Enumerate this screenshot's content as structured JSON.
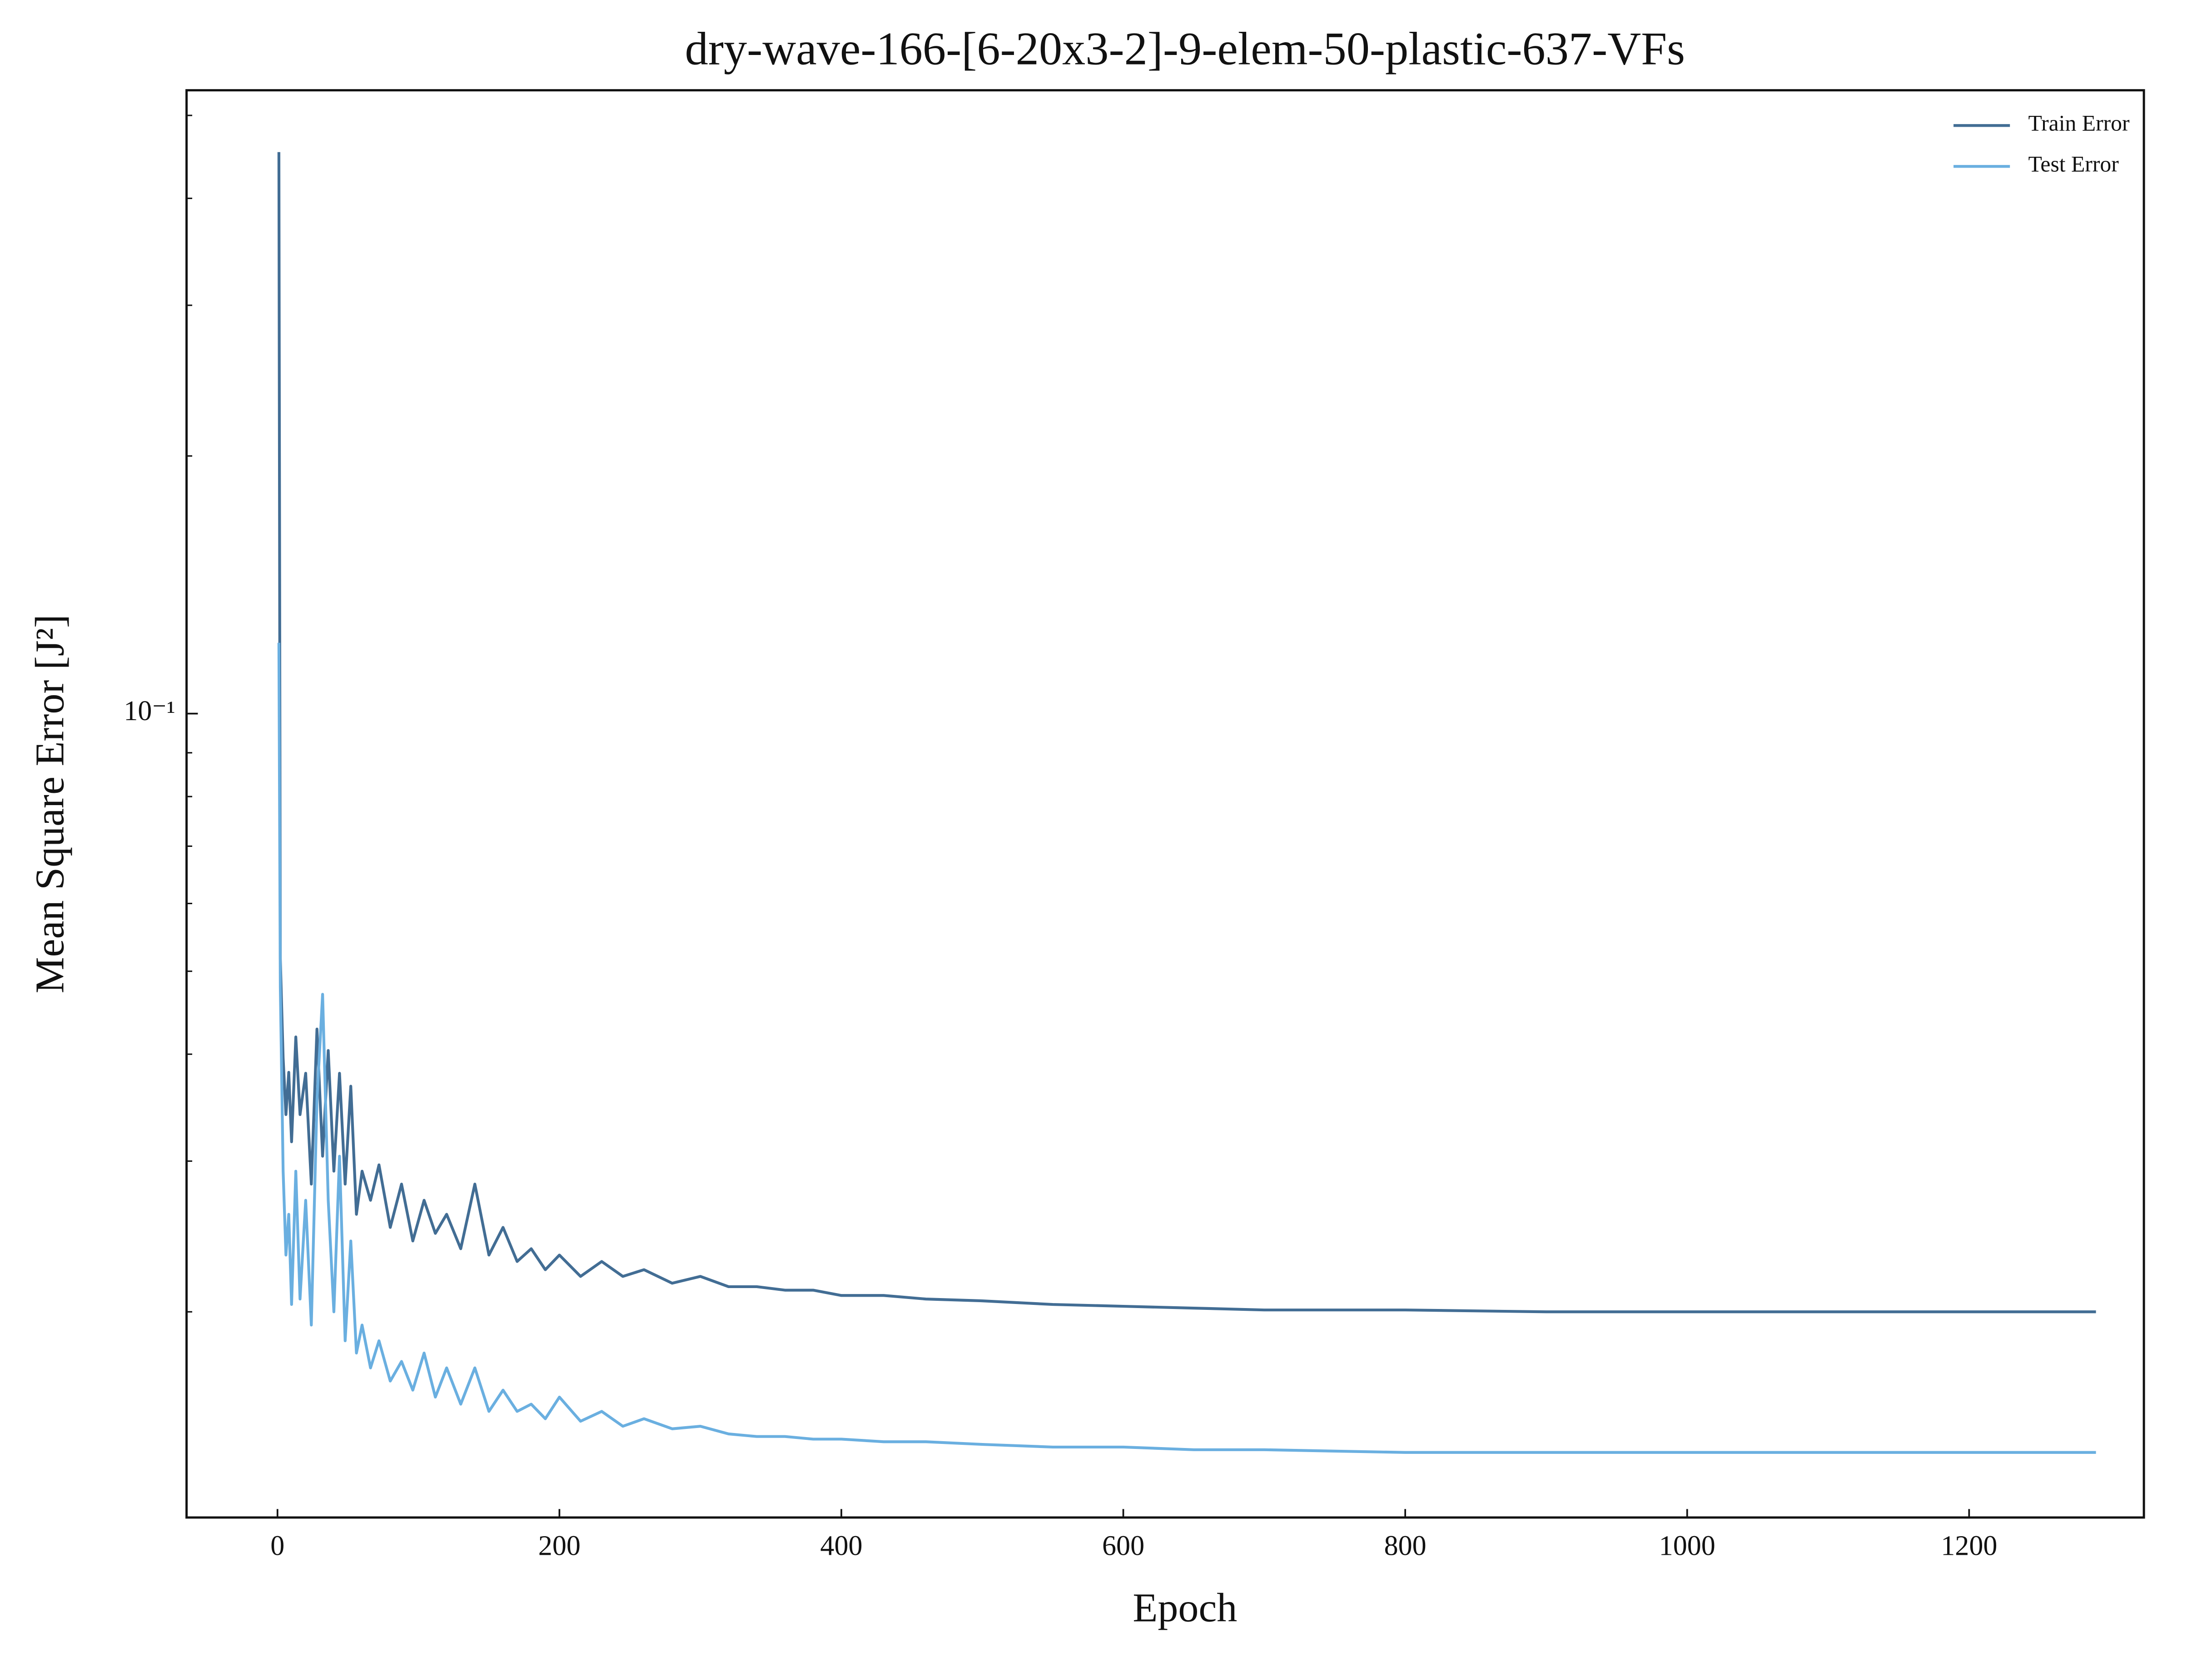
{
  "chart_data": {
    "type": "line",
    "title": "dry-wave-166-[6-20x3-2]-9-elem-50-plastic-637-VFs",
    "x_label": "Epoch",
    "y_label": "Mean Square Error [J²]",
    "x": [
      1,
      2,
      4,
      6,
      8,
      10,
      13,
      16,
      20,
      24,
      28,
      32,
      36,
      40,
      44,
      48,
      52,
      56,
      60,
      66,
      72,
      80,
      88,
      96,
      104,
      112,
      120,
      130,
      140,
      150,
      160,
      170,
      180,
      190,
      200,
      215,
      230,
      245,
      260,
      280,
      300,
      320,
      340,
      360,
      380,
      400,
      430,
      460,
      500,
      550,
      600,
      650,
      700,
      800,
      900,
      1000,
      1100,
      1200,
      1290
    ],
    "series": [
      {
        "name": "Train Error",
        "color": "#426d94",
        "values": [
          0.453,
          0.0517,
          0.0396,
          0.034,
          0.0381,
          0.0316,
          0.0419,
          0.034,
          0.038,
          0.0282,
          0.0428,
          0.0304,
          0.0404,
          0.0292,
          0.038,
          0.0282,
          0.0367,
          0.026,
          0.0292,
          0.027,
          0.0297,
          0.0251,
          0.0282,
          0.0242,
          0.027,
          0.0247,
          0.026,
          0.0237,
          0.0282,
          0.0233,
          0.0251,
          0.0229,
          0.0237,
          0.0224,
          0.0233,
          0.022,
          0.0229,
          0.022,
          0.0224,
          0.0216,
          0.022,
          0.0214,
          0.0214,
          0.0212,
          0.0212,
          0.0209,
          0.0209,
          0.0207,
          0.0206,
          0.0204,
          0.0203,
          0.0202,
          0.0201,
          0.0201,
          0.02,
          0.02,
          0.02,
          0.02,
          0.02
        ]
      },
      {
        "name": "Test Error",
        "color": "#6aafe0",
        "values": [
          0.121,
          0.0479,
          0.0292,
          0.0233,
          0.026,
          0.0204,
          0.0292,
          0.0207,
          0.027,
          0.0193,
          0.0353,
          0.047,
          0.027,
          0.02,
          0.0304,
          0.0185,
          0.0242,
          0.0179,
          0.0193,
          0.0172,
          0.0185,
          0.0166,
          0.0175,
          0.0162,
          0.0179,
          0.0159,
          0.0172,
          0.0156,
          0.0172,
          0.0153,
          0.0162,
          0.0153,
          0.0156,
          0.015,
          0.0159,
          0.0149,
          0.0153,
          0.0147,
          0.015,
          0.0146,
          0.0147,
          0.0144,
          0.0143,
          0.0143,
          0.0142,
          0.0142,
          0.0141,
          0.0141,
          0.014,
          0.0139,
          0.0139,
          0.0138,
          0.0138,
          0.0137,
          0.0137,
          0.0137,
          0.0137,
          0.0137,
          0.0137
        ]
      }
    ],
    "xlim": [
      -64.5,
      1324
    ],
    "xticks": [
      0,
      200,
      400,
      600,
      800,
      1000,
      1200
    ],
    "ylim": [
      0.0115,
      0.535
    ],
    "yticks": [
      {
        "value": 0.1,
        "label": "10⁻¹"
      }
    ],
    "y_scale": "log",
    "grid": false,
    "legend_loc": "upper right"
  }
}
